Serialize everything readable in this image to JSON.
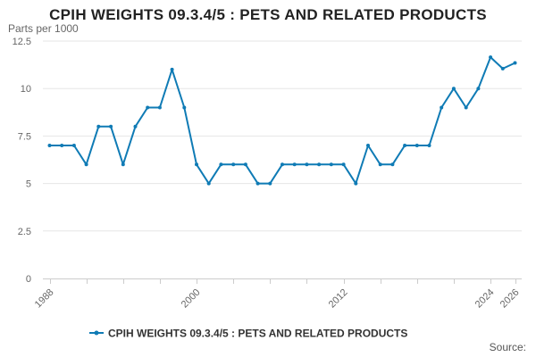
{
  "chart_data": {
    "type": "line",
    "title": "CPIH WEIGHTS 09.3.4/5 : PETS AND RELATED PRODUCTS",
    "ylabel": "Parts per 1000",
    "xlabel": "",
    "ylim": [
      0,
      12.5
    ],
    "y_ticks": [
      0,
      2.5,
      5,
      7.5,
      10,
      12.5
    ],
    "y_tick_labels": [
      "0",
      "2.5",
      "5",
      "7.5",
      "10",
      "12.5"
    ],
    "xlim": [
      1988,
      2026
    ],
    "x_tick_labels": [
      "1988",
      "2000",
      "2012",
      "2024",
      "2026"
    ],
    "grid": true,
    "legend_position": "bottom",
    "series": [
      {
        "name": "CPIH WEIGHTS 09.3.4/5 : PETS AND RELATED PRODUCTS",
        "color": "#0f7bb5",
        "x": [
          1988,
          1989,
          1990,
          1991,
          1992,
          1993,
          1994,
          1995,
          1996,
          1997,
          1998,
          1999,
          2000,
          2001,
          2002,
          2003,
          2004,
          2005,
          2006,
          2007,
          2008,
          2009,
          2010,
          2011,
          2012,
          2013,
          2014,
          2015,
          2016,
          2017,
          2018,
          2019,
          2020,
          2021,
          2022,
          2023,
          2024,
          2025,
          2026
        ],
        "y": [
          7,
          7,
          7,
          6,
          8,
          8,
          6,
          8,
          9,
          9,
          11,
          9,
          6,
          5,
          6,
          6,
          6,
          5,
          5,
          6,
          6,
          6,
          6,
          6,
          6,
          5,
          7,
          6,
          6,
          7,
          7,
          7,
          9,
          10,
          9,
          10,
          11.65,
          11.05,
          11.35
        ]
      }
    ]
  },
  "footer": {
    "source_label": "Source:"
  }
}
